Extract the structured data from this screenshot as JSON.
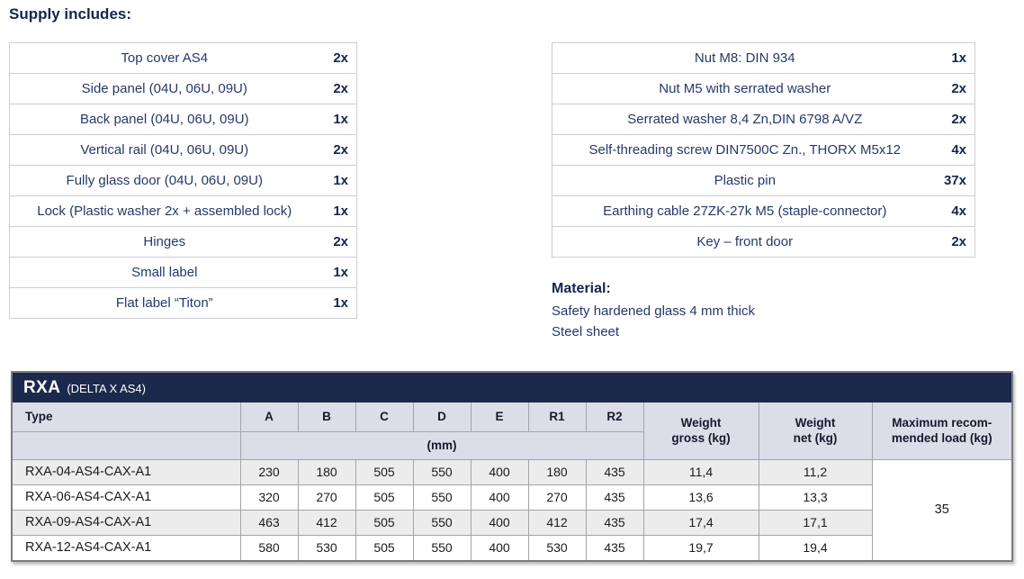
{
  "page": {
    "heading": "Supply includes:"
  },
  "colors": {
    "brand_navy": "#1b2a4c",
    "text_navy": "#24396b",
    "heading_navy": "#14264e",
    "header_lavender": "#dcdde8",
    "row_alt_gray": "#ececec",
    "border_light": "#cbced4",
    "border_mid": "#a3a5a9"
  },
  "supply_left": {
    "rows": [
      {
        "item": "Top cover AS4",
        "qty": "2x"
      },
      {
        "item": "Side panel (04U, 06U, 09U)",
        "qty": "2x"
      },
      {
        "item": "Back panel (04U, 06U, 09U)",
        "qty": "1x"
      },
      {
        "item": "Vertical rail (04U, 06U, 09U)",
        "qty": "2x"
      },
      {
        "item": "Fully glass door (04U, 06U, 09U)",
        "qty": "1x"
      },
      {
        "item": "Lock (Plastic washer 2x + assembled lock)",
        "qty": "1x"
      },
      {
        "item": "Hinges",
        "qty": "2x"
      },
      {
        "item": "Small label",
        "qty": "1x"
      },
      {
        "item": "Flat label “Titon”",
        "qty": "1x"
      }
    ]
  },
  "supply_right": {
    "rows": [
      {
        "item": "Nut M8: DIN 934",
        "qty": "1x"
      },
      {
        "item": "Nut M5 with serrated washer",
        "qty": "2x"
      },
      {
        "item": "Serrated washer 8,4 Zn,DIN 6798 A/VZ",
        "qty": "2x"
      },
      {
        "item": "Self-threading screw DIN7500C Zn., THORX M5x12",
        "qty": "4x"
      },
      {
        "item": "Plastic pin",
        "qty": "37x"
      },
      {
        "item": "Earthing cable 27ZK-27k M5 (staple-connector)",
        "qty": "4x"
      },
      {
        "item": "Key – front door",
        "qty": "2x"
      }
    ]
  },
  "material": {
    "heading": "Material:",
    "lines": [
      "Safety hardened glass 4 mm thick",
      "Steel sheet"
    ]
  },
  "spec": {
    "title": "RXA",
    "subtitle": "(DELTA X AS4)",
    "type_col": "Type",
    "dim_cols": [
      "A",
      "B",
      "C",
      "D",
      "E",
      "R1",
      "R2"
    ],
    "unit_label": "(mm)",
    "weight_gross": {
      "l1": "Weight",
      "l2": "gross (kg)"
    },
    "weight_net": {
      "l1": "Weight",
      "l2": "net (kg)"
    },
    "max_load": {
      "l1": "Maximum recom-",
      "l2": "mended load (kg)"
    },
    "max_load_value": "35",
    "rows": [
      {
        "type": "RXA-04-AS4-CAX-A1",
        "dims": [
          "230",
          "180",
          "505",
          "550",
          "400",
          "180",
          "435"
        ],
        "gross": "11,4",
        "net": "11,2"
      },
      {
        "type": "RXA-06-AS4-CAX-A1",
        "dims": [
          "320",
          "270",
          "505",
          "550",
          "400",
          "270",
          "435"
        ],
        "gross": "13,6",
        "net": "13,3"
      },
      {
        "type": "RXA-09-AS4-CAX-A1",
        "dims": [
          "463",
          "412",
          "505",
          "550",
          "400",
          "412",
          "435"
        ],
        "gross": "17,4",
        "net": "17,1"
      },
      {
        "type": "RXA-12-AS4-CAX-A1",
        "dims": [
          "580",
          "530",
          "505",
          "550",
          "400",
          "530",
          "435"
        ],
        "gross": "19,7",
        "net": "19,4"
      }
    ]
  }
}
